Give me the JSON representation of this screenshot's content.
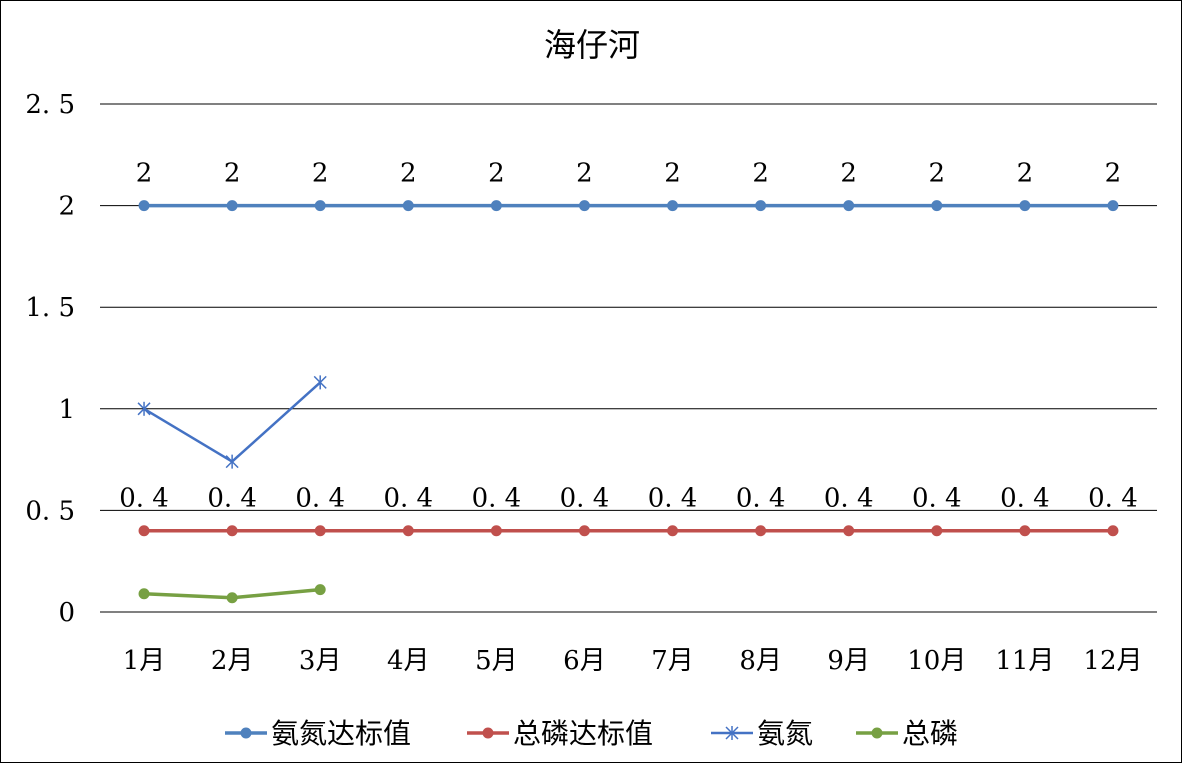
{
  "chart_data": {
    "type": "line",
    "title": "海仔河",
    "categories": [
      "1月",
      "2月",
      "3月",
      "4月",
      "5月",
      "6月",
      "7月",
      "8月",
      "9月",
      "10月",
      "11月",
      "12月"
    ],
    "ylim": [
      0,
      2.5
    ],
    "yticks": [
      "0",
      "0. 5",
      "1",
      "1. 5",
      "2",
      "2. 5"
    ],
    "ytick_values": [
      0,
      0.5,
      1,
      1.5,
      2,
      2.5
    ],
    "grid": true,
    "legend_position": "bottom",
    "series": [
      {
        "name": "氨氮达标值",
        "values": [
          2,
          2,
          2,
          2,
          2,
          2,
          2,
          2,
          2,
          2,
          2,
          2
        ],
        "data_labels": [
          "2",
          "2",
          "2",
          "2",
          "2",
          "2",
          "2",
          "2",
          "2",
          "2",
          "2",
          "2"
        ],
        "color": "#4F81BD",
        "marker": "circle"
      },
      {
        "name": "总磷达标值",
        "values": [
          0.4,
          0.4,
          0.4,
          0.4,
          0.4,
          0.4,
          0.4,
          0.4,
          0.4,
          0.4,
          0.4,
          0.4
        ],
        "data_labels": [
          "0. 4",
          "0. 4",
          "0. 4",
          "0. 4",
          "0. 4",
          "0. 4",
          "0. 4",
          "0. 4",
          "0. 4",
          "0. 4",
          "0. 4",
          "0. 4"
        ],
        "color": "#C0504D",
        "marker": "circle"
      },
      {
        "name": "氨氮",
        "values": [
          1.0,
          0.74,
          1.13,
          null,
          null,
          null,
          null,
          null,
          null,
          null,
          null,
          null
        ],
        "color": "#4472C4",
        "marker": "star"
      },
      {
        "name": "总磷",
        "values": [
          0.09,
          0.07,
          0.11,
          null,
          null,
          null,
          null,
          null,
          null,
          null,
          null,
          null
        ],
        "color": "#77A043",
        "marker": "circle"
      }
    ]
  }
}
